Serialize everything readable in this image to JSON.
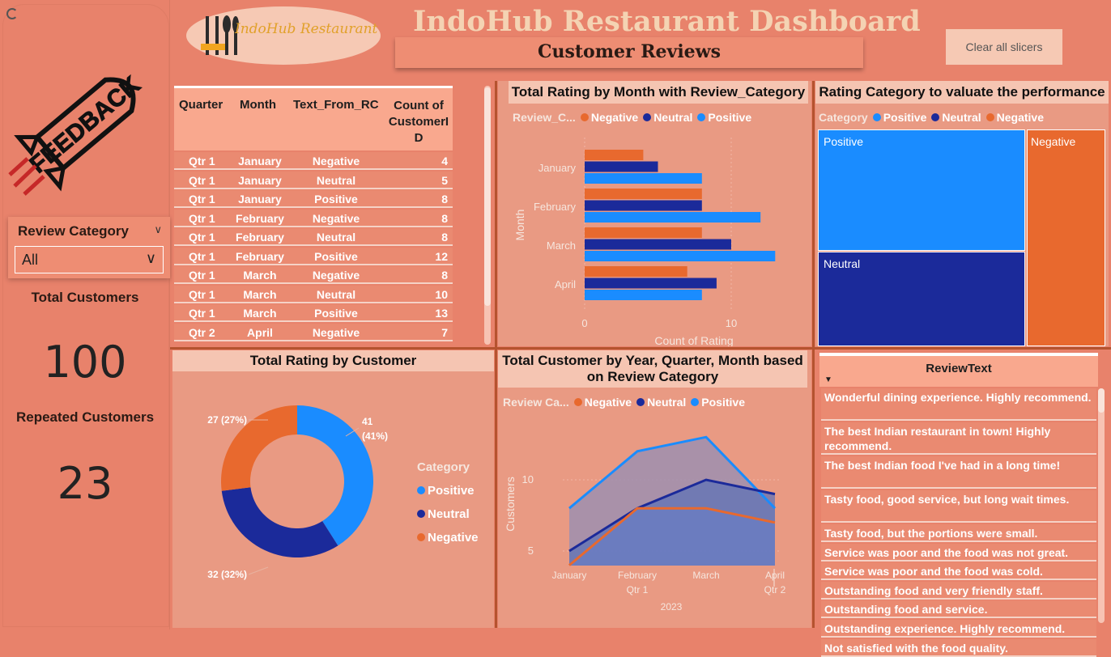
{
  "header": {
    "title": "IndoHub Restaurant Dashboard",
    "subtitle": "Customer Reviews",
    "clear_button": "Clear all slicers",
    "logo_text": "IndoHub Restaurant"
  },
  "left": {
    "feedback_word": "FEEDBACK",
    "slicer_title": "Review Category",
    "slicer_value": "All",
    "total_customers_label": "Total Customers",
    "total_customers_value": "100",
    "repeated_customers_label": "Repeated Customers",
    "repeated_customers_value": "23"
  },
  "table": {
    "headers": [
      "Quarter",
      "Month",
      "Text_From_RC",
      "Count of CustomerID"
    ],
    "header_count_lines": [
      "Count of",
      "CustomerI",
      "D"
    ],
    "rows": [
      [
        "Qtr 1",
        "January",
        "Negative",
        "4"
      ],
      [
        "Qtr 1",
        "January",
        "Neutral",
        "5"
      ],
      [
        "Qtr 1",
        "January",
        "Positive",
        "8"
      ],
      [
        "Qtr 1",
        "February",
        "Negative",
        "8"
      ],
      [
        "Qtr 1",
        "February",
        "Neutral",
        "8"
      ],
      [
        "Qtr 1",
        "February",
        "Positive",
        "12"
      ],
      [
        "Qtr 1",
        "March",
        "Negative",
        "8"
      ],
      [
        "Qtr 1",
        "March",
        "Neutral",
        "10"
      ],
      [
        "Qtr 1",
        "March",
        "Positive",
        "13"
      ],
      [
        "Qtr 2",
        "April",
        "Negative",
        "7"
      ]
    ]
  },
  "colors": {
    "negative": "#e8692e",
    "neutral": "#1b2a9a",
    "positive": "#1a8cff",
    "background": "#e8826b",
    "panel": "#e99a83",
    "title_bg": "#f5c5b2"
  },
  "legend": {
    "negative": "Negative",
    "neutral": "Neutral",
    "positive": "Positive"
  },
  "bar_chart": {
    "title": "Total Rating by Month with Review_Category",
    "legend_label": "Review_C...",
    "xlabel": "Count of Rating",
    "ylabel": "Month"
  },
  "treemap": {
    "title": "Rating Category to valuate the performance",
    "legend_label": "Category"
  },
  "donut": {
    "title": "Total Rating by Customer",
    "legend_title": "Category"
  },
  "area": {
    "title_line1": "Total Customer by Year, Quarter, Month based",
    "title_line2": "on Review Category",
    "legend_label": "Review Ca...",
    "ylabel": "Customers",
    "quarter_labels": [
      "Qtr 1",
      "Qtr 2"
    ],
    "year_label": "2023"
  },
  "reviews": {
    "header": "ReviewText",
    "items": [
      "Wonderful dining experience. Highly recommend.",
      "The best Indian restaurant in town! Highly recommend.",
      "The best Indian food I've had in a long time!",
      "Tasty food, good service, but long wait times.",
      "Tasty food, but the portions were small.",
      "Service was poor and the food was not great.",
      "Service was poor and the food was cold.",
      "Outstanding food and very friendly staff.",
      "Outstanding food and service.",
      "Outstanding experience. Highly recommend.",
      "Not satisfied with the food quality."
    ]
  },
  "chart_data": [
    {
      "type": "bar",
      "orientation": "horizontal",
      "title": "Total Rating by Month with Review_Category",
      "categories": [
        "January",
        "February",
        "March",
        "April"
      ],
      "series": [
        {
          "name": "Negative",
          "values": [
            4,
            8,
            8,
            7
          ]
        },
        {
          "name": "Neutral",
          "values": [
            5,
            8,
            10,
            9
          ]
        },
        {
          "name": "Positive",
          "values": [
            8,
            12,
            13,
            8
          ]
        }
      ],
      "xlabel": "Count of Rating",
      "ylabel": "Month",
      "xticks": [
        "0",
        "10"
      ],
      "xlim": [
        0,
        15
      ],
      "grid": true,
      "legend": "top-left"
    },
    {
      "type": "heatmap",
      "subtype": "treemap",
      "title": "Rating Category to valuate the performance",
      "categories": [
        "Positive",
        "Neutral",
        "Negative"
      ],
      "values": [
        41,
        32,
        27
      ]
    },
    {
      "type": "pie",
      "subtype": "donut",
      "title": "Total Rating by Customer",
      "categories": [
        "Positive",
        "Neutral",
        "Negative"
      ],
      "values": [
        41,
        32,
        27
      ],
      "labels": [
        "41 (41%)",
        "32 (32%)",
        "27 (27%)"
      ],
      "legend": "right"
    },
    {
      "type": "area",
      "title": "Total Customer by Year, Quarter, Month based on Review Category",
      "categories": [
        "January",
        "February",
        "March",
        "April"
      ],
      "series": [
        {
          "name": "Negative",
          "values": [
            4,
            8,
            8,
            7
          ]
        },
        {
          "name": "Neutral",
          "values": [
            5,
            8,
            10,
            9
          ]
        },
        {
          "name": "Positive",
          "values": [
            8,
            12,
            13,
            8
          ]
        }
      ],
      "ylabel": "Customers",
      "yticks": [
        "5",
        "10"
      ],
      "ylim": [
        4,
        14
      ],
      "legend": "top-left"
    }
  ]
}
